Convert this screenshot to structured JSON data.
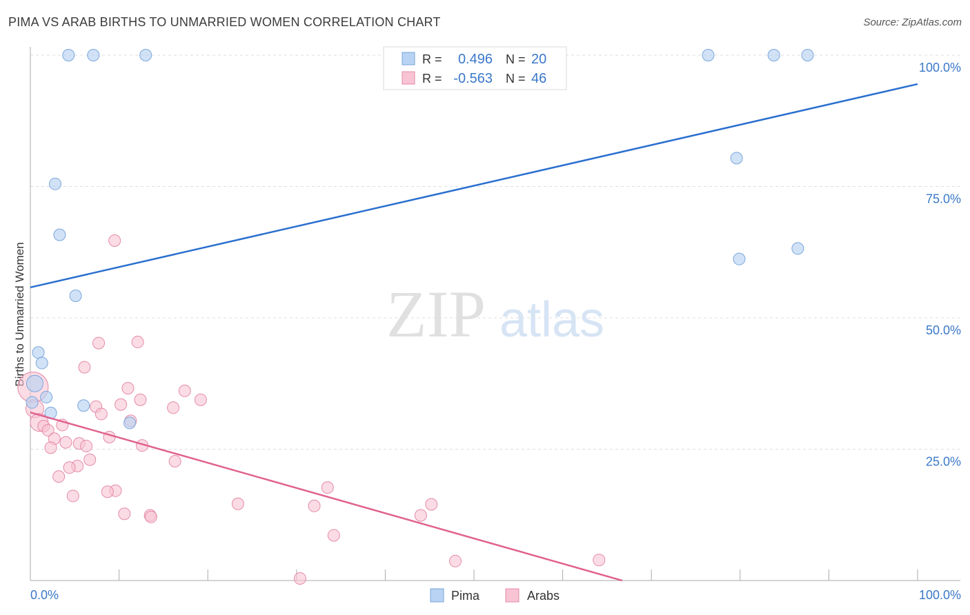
{
  "title": "PIMA VS ARAB BIRTHS TO UNMARRIED WOMEN CORRELATION CHART",
  "source": "Source: ZipAtlas.com",
  "watermark": {
    "zip": "ZIP",
    "atlas": "atlas"
  },
  "legend_box": {
    "pima": {
      "r_label": "R =",
      "r_value": "0.496",
      "n_label": "N =",
      "n_value": "20"
    },
    "arabs": {
      "r_label": "R =",
      "r_value": "-0.563",
      "n_label": "N =",
      "n_value": "46"
    }
  },
  "bottom_legend": [
    "Pima",
    "Arabs"
  ],
  "colors": {
    "pima_fill": "#b8d3f3",
    "pima_stroke": "#7aa6da",
    "pima_line": "#2a6fcf",
    "arabs_fill": "#f8c4d4",
    "arabs_stroke": "#e48aa8",
    "arabs_line": "#e0628e",
    "tick_label": "#3a78c9",
    "grid": "#dcdcdc"
  },
  "chart_data": {
    "type": "scatter",
    "title": "PIMA VS ARAB BIRTHS TO UNMARRIED WOMEN CORRELATION CHART",
    "xlabel": "",
    "ylabel": "Births to Unmarried Women",
    "xlim": [
      0,
      100
    ],
    "ylim": [
      0,
      100
    ],
    "x_tick_labels": [
      "0.0%",
      "100.0%"
    ],
    "y_ticks": [
      25,
      50,
      75,
      100
    ],
    "y_tick_labels": [
      "25.0%",
      "50.0%",
      "75.0%",
      "100.0%"
    ],
    "series": [
      {
        "name": "Pima",
        "r": 0.496,
        "n": 20,
        "trend": {
          "x": [
            0,
            100
          ],
          "y": [
            55.8,
            94.5
          ]
        },
        "points": [
          {
            "x": 4.3,
            "y": 100
          },
          {
            "x": 7.1,
            "y": 100
          },
          {
            "x": 13.0,
            "y": 100
          },
          {
            "x": 76.4,
            "y": 100
          },
          {
            "x": 83.8,
            "y": 100
          },
          {
            "x": 87.6,
            "y": 100
          },
          {
            "x": 2.8,
            "y": 75.5
          },
          {
            "x": 3.3,
            "y": 65.8
          },
          {
            "x": 5.1,
            "y": 54.2
          },
          {
            "x": 79.6,
            "y": 80.4
          },
          {
            "x": 79.9,
            "y": 61.2
          },
          {
            "x": 86.5,
            "y": 63.2
          },
          {
            "x": 0.9,
            "y": 43.4
          },
          {
            "x": 1.3,
            "y": 41.4
          },
          {
            "x": 1.8,
            "y": 34.9
          },
          {
            "x": 0.2,
            "y": 33.9
          },
          {
            "x": 2.3,
            "y": 31.9
          },
          {
            "x": 6.0,
            "y": 33.3
          },
          {
            "x": 11.2,
            "y": 30.0
          },
          {
            "x": 0.5,
            "y": 37.5
          }
        ]
      },
      {
        "name": "Arabs",
        "r": -0.563,
        "n": 46,
        "trend": {
          "x": [
            0,
            66.7
          ],
          "y": [
            32.0,
            0
          ]
        },
        "points": [
          {
            "x": 9.5,
            "y": 64.7
          },
          {
            "x": 7.7,
            "y": 45.2
          },
          {
            "x": 12.1,
            "y": 45.4
          },
          {
            "x": 6.1,
            "y": 40.6
          },
          {
            "x": 11.0,
            "y": 36.6
          },
          {
            "x": 17.4,
            "y": 36.1
          },
          {
            "x": 12.4,
            "y": 34.4
          },
          {
            "x": 19.2,
            "y": 34.4
          },
          {
            "x": 10.2,
            "y": 33.5
          },
          {
            "x": 7.4,
            "y": 33.1
          },
          {
            "x": 16.1,
            "y": 32.9
          },
          {
            "x": 8.0,
            "y": 31.7
          },
          {
            "x": 0.3,
            "y": 36.8
          },
          {
            "x": 0.5,
            "y": 32.7
          },
          {
            "x": 1.0,
            "y": 30.1
          },
          {
            "x": 1.5,
            "y": 29.4
          },
          {
            "x": 2.0,
            "y": 28.6
          },
          {
            "x": 3.6,
            "y": 29.6
          },
          {
            "x": 11.3,
            "y": 30.4
          },
          {
            "x": 2.7,
            "y": 27.0
          },
          {
            "x": 4.0,
            "y": 26.3
          },
          {
            "x": 5.5,
            "y": 26.1
          },
          {
            "x": 6.3,
            "y": 25.6
          },
          {
            "x": 8.9,
            "y": 27.3
          },
          {
            "x": 2.3,
            "y": 25.3
          },
          {
            "x": 12.6,
            "y": 25.7
          },
          {
            "x": 6.7,
            "y": 23.0
          },
          {
            "x": 16.3,
            "y": 22.7
          },
          {
            "x": 5.3,
            "y": 21.8
          },
          {
            "x": 4.4,
            "y": 21.5
          },
          {
            "x": 3.2,
            "y": 19.8
          },
          {
            "x": 9.6,
            "y": 17.1
          },
          {
            "x": 8.7,
            "y": 16.9
          },
          {
            "x": 4.8,
            "y": 16.1
          },
          {
            "x": 33.5,
            "y": 17.7
          },
          {
            "x": 23.4,
            "y": 14.6
          },
          {
            "x": 32.0,
            "y": 14.2
          },
          {
            "x": 45.2,
            "y": 14.5
          },
          {
            "x": 10.6,
            "y": 12.7
          },
          {
            "x": 13.5,
            "y": 12.4
          },
          {
            "x": 13.6,
            "y": 12.1
          },
          {
            "x": 44.0,
            "y": 12.4
          },
          {
            "x": 34.2,
            "y": 8.6
          },
          {
            "x": 47.9,
            "y": 3.7
          },
          {
            "x": 64.1,
            "y": 3.9
          },
          {
            "x": 30.4,
            "y": 0.4
          }
        ]
      }
    ]
  }
}
